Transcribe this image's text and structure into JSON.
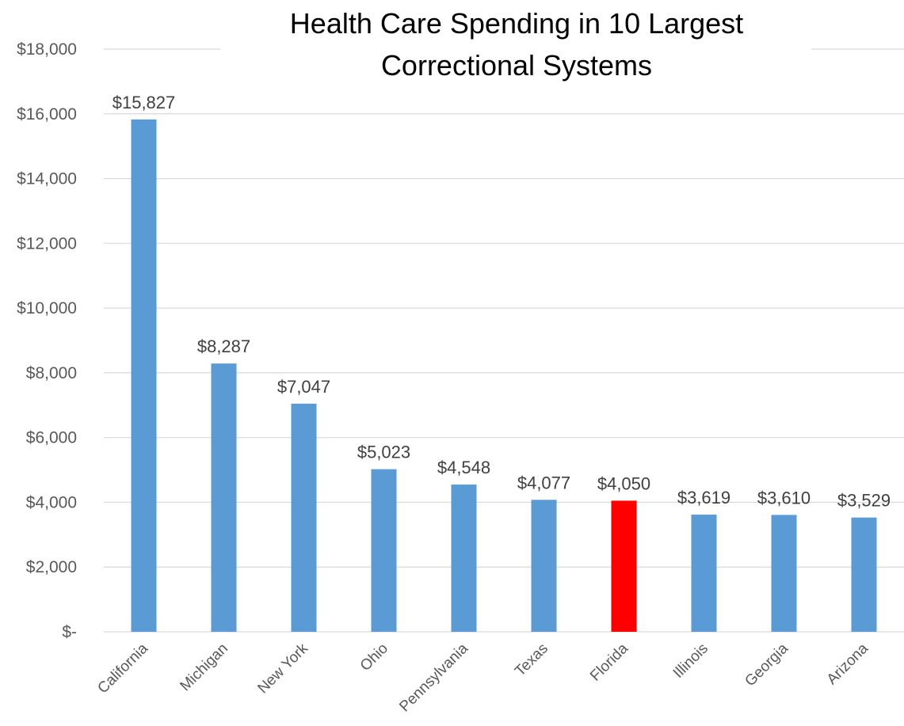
{
  "chart_data": {
    "type": "bar",
    "title_lines": [
      "Health Care Spending in 10 Largest",
      "Correctional Systems"
    ],
    "categories": [
      "California",
      "Michigan",
      "New York",
      "Ohio",
      "Pennsylvania",
      "Texas",
      "Florida",
      "Illinois",
      "Georgia",
      "Arizona"
    ],
    "values": [
      15827,
      8287,
      7047,
      5023,
      4548,
      4077,
      4050,
      3619,
      3610,
      3529
    ],
    "data_labels": [
      "$15,827",
      "$8,287",
      "$7,047",
      "$5,023",
      "$4,548",
      "$4,077",
      "$4,050",
      "$3,619",
      "$3,610",
      "$3,529"
    ],
    "ylim": [
      0,
      18000
    ],
    "yticks": [
      0,
      2000,
      4000,
      6000,
      8000,
      10000,
      12000,
      14000,
      16000,
      18000
    ],
    "ytick_labels": [
      "$-",
      "$2,000",
      "$4,000",
      "$6,000",
      "$8,000",
      "$10,000",
      "$12,000",
      "$14,000",
      "$16,000",
      "$18,000"
    ],
    "grid": true,
    "legend": "none",
    "colors": {
      "default_bar": "#5b9bd5",
      "highlight_bar": "#ff0000",
      "highlight_category": "Florida",
      "grid": "#d9d9d9"
    }
  }
}
